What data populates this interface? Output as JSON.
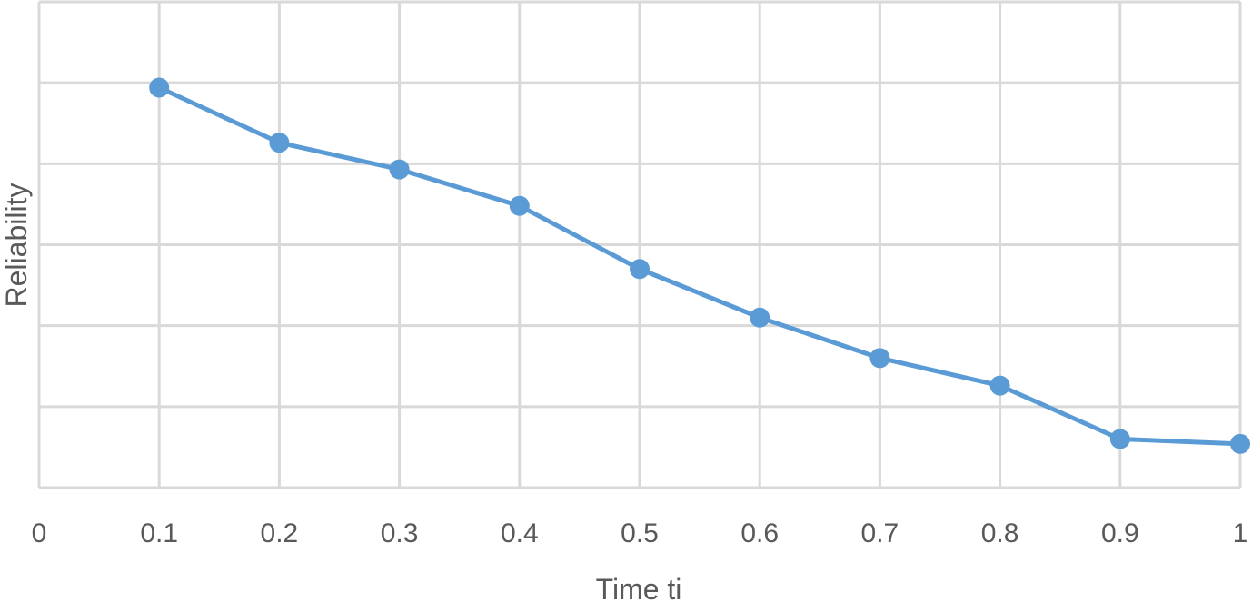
{
  "chart_data": {
    "type": "line",
    "title": "",
    "xlabel": "Time ti",
    "ylabel": "Reliability",
    "x_ticks": [
      "0",
      "0.1",
      "0.2",
      "0.3",
      "0.4",
      "0.5",
      "0.6",
      "0.7",
      "0.8",
      "0.9",
      "1"
    ],
    "x": [
      0.1,
      0.2,
      0.3,
      0.4,
      0.5,
      0.6,
      0.7,
      0.8,
      0.9,
      1.0
    ],
    "y": [
      0.494,
      0.426,
      0.393,
      0.348,
      0.27,
      0.21,
      0.16,
      0.126,
      0.06,
      0.054
    ],
    "xlim": [
      0,
      1
    ],
    "ylim": [
      0,
      0.6
    ],
    "y_gridlines": 6,
    "x_gridlines": 10,
    "grid": true,
    "y_tick_labels_shown": false,
    "legend": "none",
    "series_color": "#5b9bd5",
    "grid_color": "#d9d9d9",
    "text_color": "#595959"
  }
}
